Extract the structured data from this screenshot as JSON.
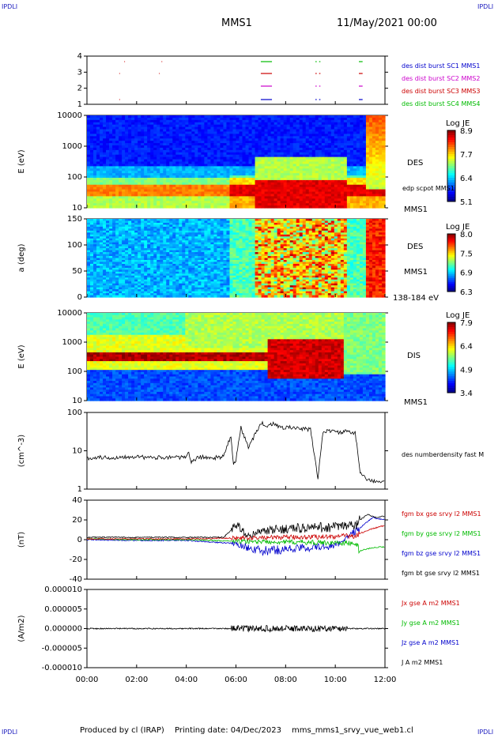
{
  "header": {
    "corner_tl": "IPDLI",
    "corner_tr": "IPDLI",
    "corner_bl": "IPDLI",
    "corner_br": "IPDLI",
    "spacecraft": "MMS1",
    "datetime": "11/May/2021 00:00"
  },
  "footer": {
    "producer": "Produced by cl (IRAP)",
    "printing": "Printing date: 04/Dec/2023",
    "script": "mms_mms1_srvy_vue_web1.cl"
  },
  "colors": {
    "blue": "#0000cc",
    "magenta": "#cc00cc",
    "red": "#cc0000",
    "green": "#00bb00",
    "black": "#000000"
  },
  "chart_data": [
    {
      "type": "timeline",
      "ylabel": "",
      "yticks": [
        "1",
        "2",
        "3",
        "4"
      ],
      "legend": [
        {
          "label": "des dist burst SC1 MMS1",
          "color": "blue"
        },
        {
          "label": "des dist burst SC2 MMS2",
          "color": "magenta"
        },
        {
          "label": "des dist burst SC3 MMS3",
          "color": "red"
        },
        {
          "label": "des dist burst SC4 MMS4",
          "color": "green"
        }
      ],
      "intervals_hours": [
        [
          7.0,
          7.45
        ],
        [
          9.2,
          9.25
        ],
        [
          9.35,
          9.4
        ],
        [
          10.95,
          11.1
        ]
      ]
    },
    {
      "type": "heatmap",
      "ylabel": "E (eV)",
      "yticks": [
        "10",
        "100",
        "1000",
        "10000"
      ],
      "right_label": "DES",
      "right_note": "edp scpot MMS1",
      "right_bottom": "MMS1",
      "colorbar": {
        "title": "Log JE",
        "ticks": [
          "8.9",
          "7.7",
          "6.4",
          "5.1"
        ]
      }
    },
    {
      "type": "heatmap",
      "ylabel": "a (deg)",
      "yticks": [
        "0",
        "50",
        "100",
        "150"
      ],
      "right_label": "DES",
      "right_mid": "MMS1",
      "right_bottom": "138-184 eV",
      "colorbar": {
        "title": "Log JE",
        "ticks": [
          "8.0",
          "7.5",
          "6.9",
          "6.3"
        ]
      }
    },
    {
      "type": "heatmap",
      "ylabel": "E (eV)",
      "yticks": [
        "10",
        "100",
        "1000",
        "10000"
      ],
      "right_label": "DIS",
      "right_bottom": "MMS1",
      "colorbar": {
        "title": "Log JE",
        "ticks": [
          "7.9",
          "6.4",
          "4.9",
          "3.4"
        ]
      }
    },
    {
      "type": "line",
      "ylabel": "(cm^-3)",
      "yticks": [
        "1",
        "10",
        "100"
      ],
      "legend": [
        {
          "label": "des numberdensity fast M",
          "color": "black"
        }
      ],
      "series": [
        {
          "x": [
            0,
            0.5,
            1,
            1.5,
            2,
            2.5,
            3,
            3.5,
            4,
            4.1,
            4.2,
            4.5,
            5,
            5.5,
            5.8,
            5.9,
            6.0,
            6.2,
            6.5,
            6.8,
            7.0,
            7.2,
            7.5,
            7.8,
            8.0,
            8.5,
            9.0,
            9.3,
            9.5,
            9.8,
            10.0,
            10.5,
            10.7,
            10.8,
            11.0,
            11.2,
            11.5,
            12.0
          ],
          "y": [
            6.5,
            6.8,
            6.5,
            7.0,
            7.2,
            6.5,
            6.8,
            7.0,
            6.5,
            9,
            5,
            7,
            6.5,
            7,
            25,
            4,
            6,
            40,
            12,
            30,
            55,
            45,
            50,
            40,
            42,
            38,
            36,
            2,
            30,
            34,
            30,
            32,
            28,
            30,
            3,
            2,
            1.6,
            1.5
          ]
        }
      ]
    },
    {
      "type": "line",
      "ylabel": "(nT)",
      "yticks": [
        "-40",
        "-20",
        "0",
        "20",
        "40"
      ],
      "legend": [
        {
          "label": "fgm bx gse srvy l2 MMS1",
          "color": "red"
        },
        {
          "label": "fgm by gse srvy l2 MMS1",
          "color": "green"
        },
        {
          "label": "fgm bz gse srvy l2 MMS1",
          "color": "blue"
        },
        {
          "label": "fgm bt gse srvy l2 MMS1",
          "color": "black"
        }
      ],
      "series": [
        {
          "name": "fgm bt gse srvy l2 MMS1",
          "x": [
            0,
            2,
            4,
            5.5,
            6,
            6.5,
            7,
            7.5,
            8,
            9,
            10,
            10.8,
            11,
            11.3,
            11.6,
            12
          ],
          "y": [
            3,
            3,
            3,
            3,
            18,
            5,
            10,
            12,
            14,
            15,
            16,
            18,
            25,
            32,
            28,
            30
          ]
        },
        {
          "name": "fgm bx gse srvy l2 MMS1",
          "x": [
            0,
            2,
            4,
            6,
            8,
            10,
            10.8,
            11,
            11.5,
            12
          ],
          "y": [
            1,
            1,
            1,
            2,
            3,
            4,
            5,
            8,
            14,
            18
          ]
        },
        {
          "name": "fgm by gse srvy l2 MMS1",
          "x": [
            0,
            2,
            4,
            6,
            8,
            10,
            10.8,
            11,
            11.5,
            12
          ],
          "y": [
            1,
            0,
            0,
            -2,
            -3,
            -4,
            -5,
            -14,
            -10,
            -9
          ]
        },
        {
          "name": "fgm bz gse srvy l2 MMS1",
          "x": [
            0,
            2,
            4,
            6,
            7,
            8,
            9,
            10,
            11,
            11.5,
            12
          ],
          "y": [
            0,
            -1,
            -1,
            -5,
            -15,
            -12,
            -10,
            -8,
            15,
            28,
            25
          ]
        }
      ]
    },
    {
      "type": "line",
      "ylabel": "(A/m2)",
      "yticks": [
        "-0.000010",
        "-0.000005",
        "0.000000",
        "0.000005",
        "0.000010"
      ],
      "legend": [
        {
          "label": "Jx gse A m2 MMS1",
          "color": "red"
        },
        {
          "label": "Jy gse A m2 MMS1",
          "color": "green"
        },
        {
          "label": "Jz gse A m2 MMS1",
          "color": "blue"
        },
        {
          "label": "J A m2 MMS1",
          "color": "black"
        }
      ],
      "series": [
        {
          "name": "J A m2 MMS1",
          "x": [
            0,
            3,
            6,
            7.5,
            8,
            9,
            10,
            11,
            12
          ],
          "y": [
            0,
            0,
            3e-07,
            5e-07,
            4e-07,
            3e-07,
            2e-07,
            3e-07,
            0
          ]
        }
      ]
    }
  ],
  "xaxis": {
    "ticks": [
      "00:00",
      "02:00",
      "04:00",
      "06:00",
      "08:00",
      "10:00",
      "12:00"
    ],
    "range_hours": [
      0,
      12
    ]
  }
}
